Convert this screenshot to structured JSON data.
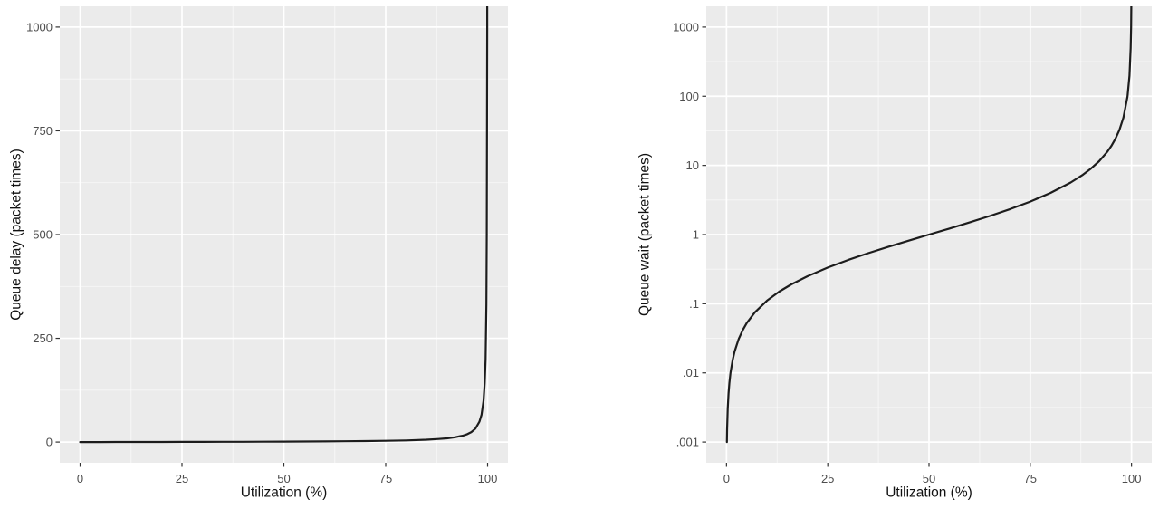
{
  "figure": {
    "background_color": "#ffffff",
    "description": "Two side-by-side ggplot-style line charts of M/M/1 queueing behaviour versus link utilization"
  },
  "style": {
    "panel_bg": "#EBEBEB",
    "grid_major_color": "#FFFFFF",
    "grid_minor_color": "#FFFFFF",
    "curve_color": "#1c1c1c",
    "tick_mark_color": "#333333",
    "tick_label_color": "#4d4d4d",
    "axis_title_color": "#111111"
  },
  "chart_data": [
    {
      "id": "queue-delay-linear",
      "type": "line",
      "title": "",
      "xlabel": "Utilization (%)",
      "ylabel": "Queue delay (packet times)",
      "legend": "none",
      "grid": "on",
      "x_scale": "linear",
      "xlim": [
        -5,
        105
      ],
      "x_ticks": [
        0,
        25,
        50,
        75,
        100
      ],
      "x_tick_labels": [
        "0",
        "25",
        "50",
        "75",
        "100"
      ],
      "x_minor": [
        12.5,
        37.5,
        62.5,
        87.5
      ],
      "y_scale": "linear",
      "ylim": [
        -50,
        1050
      ],
      "y_ticks": [
        0,
        250,
        500,
        750,
        1000
      ],
      "y_tick_labels": [
        "0",
        "250",
        "500",
        "750",
        "1000"
      ],
      "y_minor": [
        125,
        375,
        625,
        875
      ],
      "series": [
        {
          "name": "queue-delay-curve",
          "formula": "delay = u / (100 - u)",
          "points": [
            [
              0,
              0
            ],
            [
              5,
              0.0526
            ],
            [
              10,
              0.1111
            ],
            [
              15,
              0.1765
            ],
            [
              20,
              0.25
            ],
            [
              25,
              0.3333
            ],
            [
              30,
              0.4286
            ],
            [
              35,
              0.5385
            ],
            [
              40,
              0.6667
            ],
            [
              45,
              0.8182
            ],
            [
              50,
              1
            ],
            [
              55,
              1.222
            ],
            [
              60,
              1.5
            ],
            [
              65,
              1.857
            ],
            [
              70,
              2.333
            ],
            [
              75,
              3
            ],
            [
              80,
              4
            ],
            [
              85,
              5.667
            ],
            [
              88,
              7.333
            ],
            [
              90,
              9
            ],
            [
              92,
              11.5
            ],
            [
              94,
              15.67
            ],
            [
              95,
              19
            ],
            [
              96,
              24
            ],
            [
              97,
              32.33
            ],
            [
              98,
              49
            ],
            [
              98.5,
              65.67
            ],
            [
              99,
              99
            ],
            [
              99.3,
              141.9
            ],
            [
              99.5,
              199
            ],
            [
              99.7,
              332.3
            ],
            [
              99.8,
              499
            ],
            [
              99.9,
              999
            ],
            [
              99.95,
              1999
            ]
          ]
        }
      ]
    },
    {
      "id": "queue-wait-log",
      "type": "line",
      "title": "",
      "xlabel": "Utilization (%)",
      "ylabel": "Queue wait (packet times)",
      "legend": "none",
      "grid": "on",
      "x_scale": "linear",
      "xlim": [
        -5,
        105
      ],
      "x_ticks": [
        0,
        25,
        50,
        75,
        100
      ],
      "x_tick_labels": [
        "0",
        "25",
        "50",
        "75",
        "100"
      ],
      "x_minor": [
        12.5,
        37.5,
        62.5,
        87.5
      ],
      "y_scale": "log10",
      "ylim_log": [
        -3.3,
        3.3
      ],
      "y_ticks": [
        1000,
        100,
        10,
        1,
        0.1,
        0.01,
        0.001
      ],
      "y_tick_labels": [
        "1000",
        "100",
        "10",
        "1",
        ".1",
        ".01",
        ".001"
      ],
      "y_minor": [
        316.23,
        31.623,
        3.1623,
        0.31623,
        0.031623,
        0.0031623
      ],
      "series": [
        {
          "name": "queue-wait-curve",
          "formula": "wait = u / (100 - u)",
          "points": [
            [
              0.1,
              0.001001
            ],
            [
              0.15,
              0.001502
            ],
            [
              0.2,
              0.002004
            ],
            [
              0.3,
              0.003009
            ],
            [
              0.5,
              0.005025
            ],
            [
              0.7,
              0.007049
            ],
            [
              1,
              0.0101
            ],
            [
              1.5,
              0.01523
            ],
            [
              2,
              0.02041
            ],
            [
              3,
              0.03093
            ],
            [
              4,
              0.04167
            ],
            [
              5,
              0.05263
            ],
            [
              7,
              0.07527
            ],
            [
              10,
              0.1111
            ],
            [
              13,
              0.1494
            ],
            [
              16,
              0.1905
            ],
            [
              20,
              0.25
            ],
            [
              25,
              0.3333
            ],
            [
              30,
              0.4286
            ],
            [
              35,
              0.5385
            ],
            [
              40,
              0.6667
            ],
            [
              45,
              0.8182
            ],
            [
              50,
              1
            ],
            [
              55,
              1.222
            ],
            [
              60,
              1.5
            ],
            [
              65,
              1.857
            ],
            [
              70,
              2.333
            ],
            [
              75,
              3
            ],
            [
              80,
              4
            ],
            [
              85,
              5.667
            ],
            [
              88,
              7.333
            ],
            [
              90,
              9
            ],
            [
              92,
              11.5
            ],
            [
              94,
              15.67
            ],
            [
              95,
              19
            ],
            [
              96,
              24
            ],
            [
              97,
              32.33
            ],
            [
              98,
              49
            ],
            [
              99,
              99
            ],
            [
              99.5,
              199
            ],
            [
              99.8,
              499
            ],
            [
              99.9,
              999
            ],
            [
              99.95,
              1999
            ],
            [
              99.96,
              2499
            ]
          ]
        }
      ]
    }
  ]
}
